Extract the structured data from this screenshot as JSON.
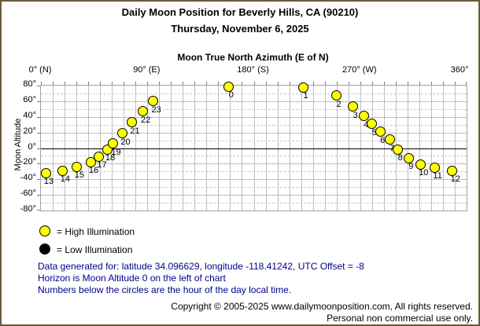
{
  "header": {
    "title_line1": "Daily Moon Position for Beverly Hills, CA (90210)",
    "title_line2": "Thursday, November 6, 2025"
  },
  "chart_data": {
    "type": "scatter",
    "title": "Moon True North Azimuth (E of N)",
    "xlabel": "Moon True North Azimuth (E of N)",
    "ylabel": "Moon Altitude",
    "xlim": [
      0,
      360
    ],
    "ylim": [
      -80,
      80
    ],
    "x_major_ticks": [
      {
        "value": 0,
        "label": "0° (N)"
      },
      {
        "value": 90,
        "label": "90° (E)"
      },
      {
        "value": 180,
        "label": "180° (S)"
      },
      {
        "value": 270,
        "label": "270° (W)"
      },
      {
        "value": 360,
        "label": "360°"
      }
    ],
    "x_minor_step": 10,
    "y_major_ticks": [
      {
        "value": 80,
        "label": "80°"
      },
      {
        "value": 60,
        "label": "60°"
      },
      {
        "value": 40,
        "label": "40°"
      },
      {
        "value": 20,
        "label": "20°"
      },
      {
        "value": 0,
        "label": "0°"
      },
      {
        "value": -20,
        "label": "-20°"
      },
      {
        "value": -40,
        "label": "-40°"
      },
      {
        "value": -60,
        "label": "-60°"
      },
      {
        "value": -80,
        "label": "-80°"
      }
    ],
    "y_minor_step": 10,
    "grid": true,
    "horizon_line_altitude": 0,
    "point_color": "#ffff00",
    "series": [
      {
        "name": "High Illumination",
        "color": "#ffff00",
        "points": [
          {
            "hour": 0,
            "azimuth": 159,
            "altitude": 79
          },
          {
            "hour": 1,
            "azimuth": 222,
            "altitude": 78
          },
          {
            "hour": 2,
            "azimuth": 250,
            "altitude": 67
          },
          {
            "hour": 3,
            "azimuth": 264,
            "altitude": 53
          },
          {
            "hour": 4,
            "azimuth": 273,
            "altitude": 41
          },
          {
            "hour": 5,
            "azimuth": 280,
            "altitude": 31
          },
          {
            "hour": 6,
            "azimuth": 287,
            "altitude": 21
          },
          {
            "hour": 7,
            "azimuth": 295,
            "altitude": 11
          },
          {
            "hour": 8,
            "azimuth": 302,
            "altitude": -2
          },
          {
            "hour": 9,
            "azimuth": 311,
            "altitude": -13
          },
          {
            "hour": 10,
            "azimuth": 321,
            "altitude": -21
          },
          {
            "hour": 11,
            "azimuth": 333,
            "altitude": -25
          },
          {
            "hour": 12,
            "azimuth": 348,
            "altitude": -29
          },
          {
            "hour": 13,
            "azimuth": 4,
            "altitude": -32
          },
          {
            "hour": 14,
            "azimuth": 18,
            "altitude": -29
          },
          {
            "hour": 15,
            "azimuth": 30,
            "altitude": -24
          },
          {
            "hour": 16,
            "azimuth": 42,
            "altitude": -18
          },
          {
            "hour": 17,
            "azimuth": 49,
            "altitude": -11
          },
          {
            "hour": 18,
            "azimuth": 56,
            "altitude": -2
          },
          {
            "hour": 19,
            "azimuth": 61,
            "altitude": 6
          },
          {
            "hour": 20,
            "azimuth": 69,
            "altitude": 19
          },
          {
            "hour": 21,
            "azimuth": 77,
            "altitude": 33
          },
          {
            "hour": 22,
            "azimuth": 86,
            "altitude": 47
          },
          {
            "hour": 23,
            "azimuth": 95,
            "altitude": 60
          }
        ]
      }
    ]
  },
  "legend": [
    {
      "swatch": "#ffff00",
      "label": "= High Illumination"
    },
    {
      "swatch": "#000000",
      "label": "= Low Illumination"
    }
  ],
  "notes": [
    "Data generated for: latitude 34.096629, longitude -118.41242, UTC Offset = -8",
    "Horizon is Moon Altitude 0 on the left of chart",
    "Numbers below the circles are the hour of the day local time."
  ],
  "footer": {
    "line1": "Copyright © 2005-2025 www.dailymoonposition.com, All rights reserved.",
    "line2": "Personal non commercial use only."
  },
  "colors": {
    "frame_border": "#6b5c36",
    "note_text": "#00008b",
    "grid": "#bdbdbd",
    "point_fill": "#ffff00"
  }
}
